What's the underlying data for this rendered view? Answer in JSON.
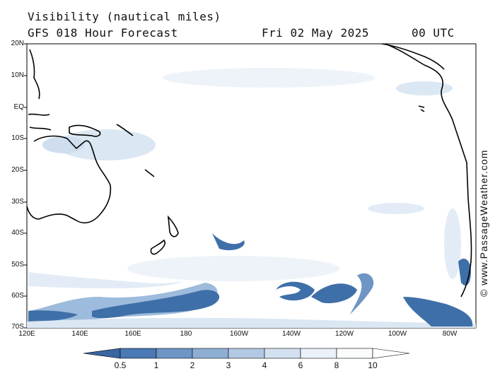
{
  "header": {
    "title": "Visibility (nautical miles)",
    "subtitle": "GFS 018 Hour Forecast",
    "date": "Fri 02 May 2025",
    "time": "00 UTC"
  },
  "map": {
    "lat_labels": [
      "20N",
      "10N",
      "EQ",
      "10S",
      "20S",
      "30S",
      "40S",
      "50S",
      "60S",
      "70S"
    ],
    "lon_labels": [
      "120E",
      "140E",
      "160E",
      "180",
      "160W",
      "140W",
      "120W",
      "100W",
      "80W"
    ],
    "colors": {
      "ocean": "#ffffff",
      "land_outline": "#000000",
      "low_vis": "#3f6fa8",
      "mid_vis": "#9dbbdc",
      "high_vis": "#dbe7f3"
    }
  },
  "colorbar": {
    "labels": [
      "0.5",
      "1",
      "2",
      "3",
      "4",
      "6",
      "8",
      "10"
    ],
    "colors": [
      "#3a66a1",
      "#4a79b4",
      "#6e95c5",
      "#8eaed4",
      "#b3c9e3",
      "#d2e0f0",
      "#eaf1f8",
      "#fafcfe"
    ]
  },
  "credit": "© www.PassageWeather.com"
}
